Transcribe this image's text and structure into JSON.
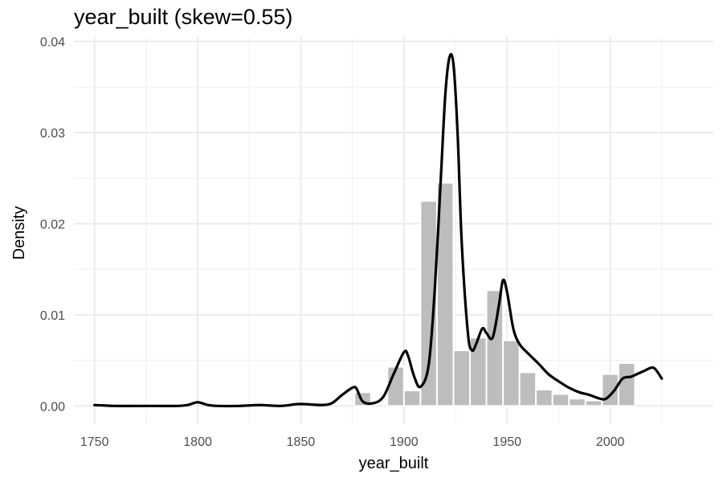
{
  "chart_data": {
    "type": "bar",
    "title": "year_built (skew=0.55)",
    "xlabel": "year_built",
    "ylabel": "Density",
    "xlim": [
      1740,
      2050
    ],
    "ylim": [
      -0.002,
      0.0405
    ],
    "x_ticks": [
      1750,
      1800,
      1850,
      1900,
      1950,
      2000
    ],
    "x_tick_labels": [
      "1750",
      "1800",
      "1850",
      "1900",
      "1950",
      "2000"
    ],
    "y_ticks": [
      0,
      0.01,
      0.02,
      0.03,
      0.04
    ],
    "y_tick_labels": [
      "0.00",
      "0.01",
      "0.02",
      "0.03",
      "0.04"
    ],
    "grid": true,
    "bar_color": "#bdbdbd",
    "bar_edge_color": "#ffffff",
    "line_color": "#000000",
    "histogram": {
      "bin_width": 8,
      "bins": [
        {
          "x": 1876,
          "density": 0.0015
        },
        {
          "x": 1892,
          "density": 0.0043
        },
        {
          "x": 1900,
          "density": 0.0017
        },
        {
          "x": 1908,
          "density": 0.0225
        },
        {
          "x": 1916,
          "density": 0.0245
        },
        {
          "x": 1924,
          "density": 0.0061
        },
        {
          "x": 1932,
          "density": 0.0075
        },
        {
          "x": 1940,
          "density": 0.0127
        },
        {
          "x": 1948,
          "density": 0.0072
        },
        {
          "x": 1956,
          "density": 0.0037
        },
        {
          "x": 1964,
          "density": 0.0018
        },
        {
          "x": 1972,
          "density": 0.0013
        },
        {
          "x": 1980,
          "density": 0.0008
        },
        {
          "x": 1988,
          "density": 0.0006
        },
        {
          "x": 1996,
          "density": 0.0035
        },
        {
          "x": 2004,
          "density": 0.0047
        }
      ]
    },
    "density_curve": {
      "x": [
        1750,
        1760,
        1770,
        1780,
        1790,
        1795,
        1800,
        1805,
        1810,
        1820,
        1830,
        1840,
        1848,
        1852,
        1860,
        1865,
        1870,
        1875,
        1877,
        1880,
        1885,
        1890,
        1895,
        1900,
        1902,
        1905,
        1908,
        1912,
        1915,
        1918,
        1920,
        1922,
        1924,
        1926,
        1928,
        1931,
        1933,
        1935,
        1938,
        1940,
        1943,
        1946,
        1948,
        1950,
        1953,
        1956,
        1960,
        1965,
        1970,
        1975,
        1980,
        1985,
        1990,
        1995,
        1998,
        2002,
        2006,
        2010,
        2013,
        2016,
        2020,
        2022,
        2025
      ],
      "y": [
        0.0001,
        0.0,
        0.0,
        0.0,
        0.0,
        0.0001,
        0.0004,
        0.0001,
        0.0,
        0.0,
        0.0001,
        0.0,
        0.0002,
        0.0002,
        0.0001,
        0.0003,
        0.0012,
        0.002,
        0.0019,
        0.0005,
        0.0003,
        0.001,
        0.0035,
        0.0059,
        0.0055,
        0.0032,
        0.0021,
        0.0045,
        0.013,
        0.0255,
        0.034,
        0.0382,
        0.0375,
        0.03,
        0.018,
        0.008,
        0.0061,
        0.0068,
        0.0085,
        0.008,
        0.0075,
        0.011,
        0.0138,
        0.0125,
        0.0085,
        0.0068,
        0.0058,
        0.0047,
        0.0035,
        0.0027,
        0.002,
        0.0015,
        0.0012,
        0.0008,
        0.0008,
        0.0017,
        0.003,
        0.0032,
        0.0035,
        0.0038,
        0.0042,
        0.004,
        0.003
      ]
    }
  }
}
